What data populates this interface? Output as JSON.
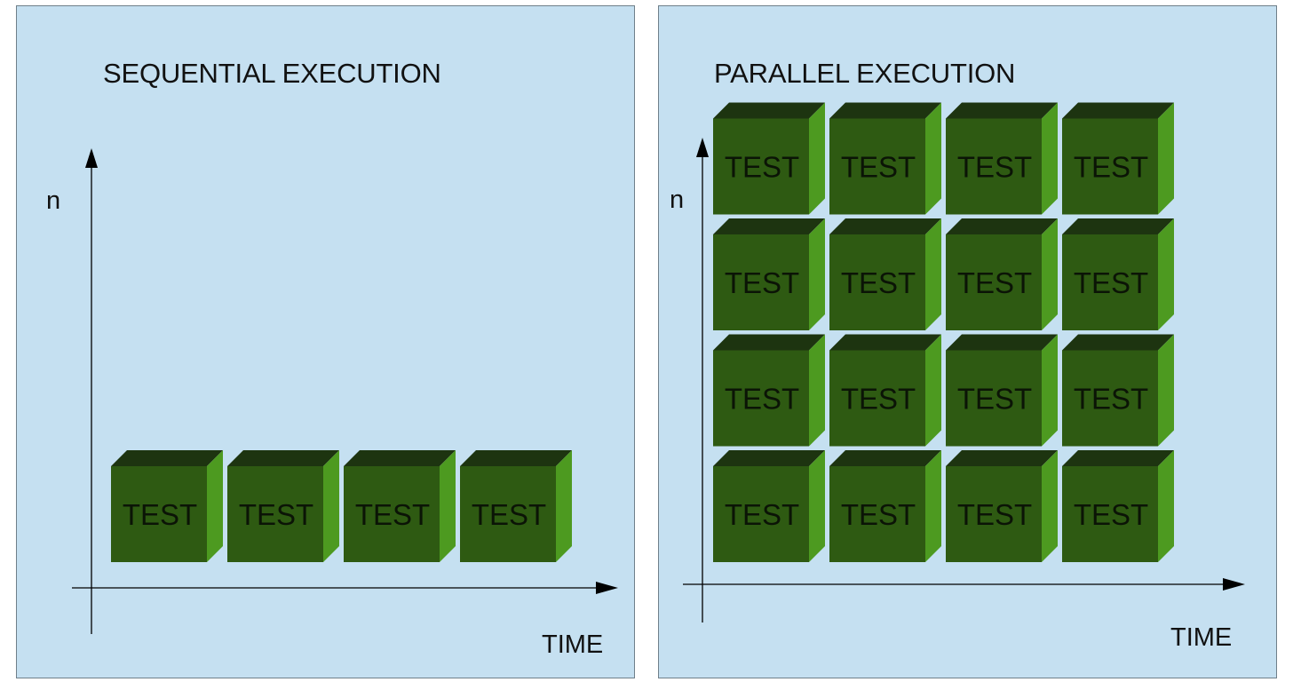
{
  "panels": [
    {
      "title": "SEQUENTIAL EXECUTION",
      "y_axis_label": "n",
      "x_axis_label": "TIME",
      "grid": {
        "rows": 1,
        "cols": 4
      },
      "block_label": "TEST"
    },
    {
      "title": "PARALLEL EXECUTION",
      "y_axis_label": "n",
      "x_axis_label": "TIME",
      "grid": {
        "rows": 4,
        "cols": 4
      },
      "block_label": "TEST"
    }
  ],
  "colors": {
    "panel_background": "#c5e0f1",
    "cube_front": "#2e5a12",
    "cube_top": "#1d3410",
    "cube_side": "#4d9a20",
    "axis": "#000000"
  }
}
